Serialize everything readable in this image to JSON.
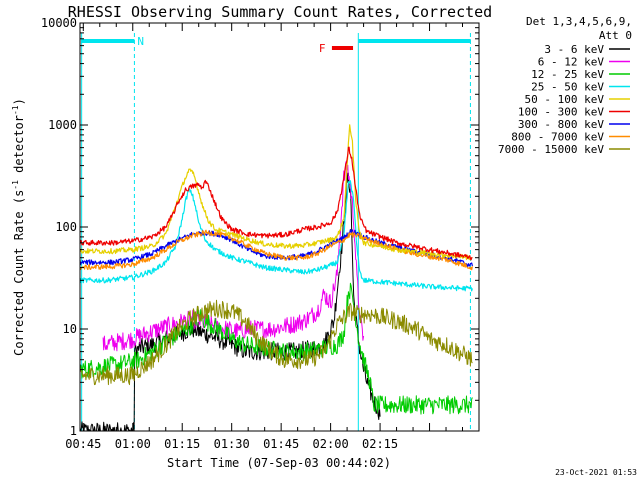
{
  "chart_data": {
    "type": "line",
    "title": "RHESSI Observing Summary Count Rates, Corrected",
    "xlabel": "Start Time (07-Sep-03 00:44:02)",
    "ylabel_main": "Corrected Count Rate (s",
    "ylabel_exp1": "-1",
    "ylabel_mid": " detector",
    "ylabel_exp2": "-1",
    "ylabel_end": ")",
    "y_scale": "log",
    "ylim": [
      1,
      10000
    ],
    "xlim_minutes": [
      44,
      165
    ],
    "x_tick_labels": [
      {
        "t": 45,
        "label": "00:45"
      },
      {
        "t": 60,
        "label": "01:00"
      },
      {
        "t": 75,
        "label": "01:15"
      },
      {
        "t": 90,
        "label": "01:30"
      },
      {
        "t": 105,
        "label": "01:45"
      },
      {
        "t": 120,
        "label": "02:00"
      },
      {
        "t": 135,
        "label": "02:15"
      }
    ],
    "y_tick_labels": [
      {
        "v": 1,
        "label": "1"
      },
      {
        "v": 10,
        "label": "10"
      },
      {
        "v": 100,
        "label": "100"
      },
      {
        "v": 1000,
        "label": "1000"
      },
      {
        "v": 10000,
        "label": "10000"
      }
    ],
    "legend_header": [
      "Det 1,3,4,5,6,9,",
      "Att 0"
    ],
    "legend_position": "right",
    "grid": false,
    "annotations": {
      "night_label": "N",
      "flare_label": "F",
      "night_intervals": [
        [
          44.3,
          60.5
        ],
        [
          128.5,
          162.5
        ]
      ],
      "flare_interval": [
        120.4,
        126.8
      ],
      "markers": [
        {
          "t": 44.5,
          "style": "solid"
        },
        {
          "t": 60.5,
          "style": "dashed"
        },
        {
          "t": 128.4,
          "style": "solid"
        },
        {
          "t": 162.4,
          "style": "dashed"
        }
      ]
    },
    "series": [
      {
        "name": "3 - 6 keV",
        "color": "#000000",
        "points": [
          [
            44,
            1
          ],
          [
            58,
            1
          ],
          [
            60.5,
            1
          ],
          [
            60.6,
            6
          ],
          [
            62,
            6.5
          ],
          [
            66,
            7
          ],
          [
            70,
            8
          ],
          [
            74,
            9
          ],
          [
            78,
            10
          ],
          [
            82,
            9
          ],
          [
            86,
            8
          ],
          [
            90,
            7
          ],
          [
            94,
            6
          ],
          [
            98,
            6
          ],
          [
            104,
            6
          ],
          [
            110,
            6
          ],
          [
            115,
            6.5
          ],
          [
            118,
            7
          ],
          [
            121,
            12
          ],
          [
            124,
            100
          ],
          [
            125,
            300
          ],
          [
            126,
            250
          ],
          [
            127,
            20
          ],
          [
            128,
            10
          ],
          [
            129,
            6
          ],
          [
            130,
            4
          ],
          [
            131,
            3
          ],
          [
            133,
            2
          ],
          [
            135,
            1.5
          ]
        ]
      },
      {
        "name": "6 - 12 keV",
        "color": "#ee00ee",
        "points": [
          [
            51,
            7
          ],
          [
            56,
            7.5
          ],
          [
            60,
            8
          ],
          [
            64,
            9
          ],
          [
            68,
            10
          ],
          [
            72,
            11
          ],
          [
            76,
            12
          ],
          [
            78,
            12.5
          ],
          [
            80,
            12
          ],
          [
            84,
            11
          ],
          [
            88,
            10
          ],
          [
            92,
            9.5
          ],
          [
            96,
            10
          ],
          [
            102,
            10
          ],
          [
            108,
            11
          ],
          [
            112,
            12
          ],
          [
            116,
            15
          ],
          [
            118,
            22
          ],
          [
            120,
            18
          ],
          [
            122,
            35
          ],
          [
            124,
            300
          ],
          [
            125,
            400
          ],
          [
            126,
            250
          ],
          [
            127,
            120
          ],
          [
            128,
            30
          ],
          [
            129,
            12
          ],
          [
            130,
            8
          ]
        ]
      },
      {
        "name": "12 - 25 keV",
        "color": "#00cc00",
        "points": [
          [
            44,
            4
          ],
          [
            56,
            4.5
          ],
          [
            62,
            5
          ],
          [
            66,
            6
          ],
          [
            70,
            7.5
          ],
          [
            74,
            9
          ],
          [
            78,
            11
          ],
          [
            80,
            14
          ],
          [
            82,
            12
          ],
          [
            86,
            10
          ],
          [
            90,
            8
          ],
          [
            94,
            7
          ],
          [
            100,
            6.5
          ],
          [
            106,
            6
          ],
          [
            112,
            6
          ],
          [
            118,
            6.5
          ],
          [
            122,
            7
          ],
          [
            124,
            9
          ],
          [
            125.5,
            25
          ],
          [
            126.5,
            22
          ],
          [
            127.5,
            14
          ],
          [
            128.5,
            8
          ],
          [
            130,
            5
          ],
          [
            132,
            3
          ],
          [
            133,
            1.8
          ],
          [
            163,
            1.8
          ]
        ]
      },
      {
        "name": "25 - 50 keV",
        "color": "#00e5ee",
        "points": [
          [
            44,
            30
          ],
          [
            52,
            30
          ],
          [
            60,
            32
          ],
          [
            66,
            37
          ],
          [
            70,
            45
          ],
          [
            73,
            65
          ],
          [
            75,
            120
          ],
          [
            76,
            180
          ],
          [
            77,
            230
          ],
          [
            78,
            210
          ],
          [
            79,
            160
          ],
          [
            80,
            110
          ],
          [
            82,
            75
          ],
          [
            85,
            60
          ],
          [
            90,
            50
          ],
          [
            95,
            45
          ],
          [
            100,
            40
          ],
          [
            106,
            38
          ],
          [
            112,
            36
          ],
          [
            116,
            38
          ],
          [
            118,
            40
          ],
          [
            120,
            42
          ],
          [
            122,
            45
          ],
          [
            124,
            80
          ],
          [
            125.3,
            260
          ],
          [
            126,
            280
          ],
          [
            127,
            180
          ],
          [
            128,
            60
          ],
          [
            129,
            35
          ],
          [
            130,
            30
          ],
          [
            140,
            28
          ],
          [
            150,
            26
          ],
          [
            160,
            25
          ],
          [
            163,
            25
          ]
        ]
      },
      {
        "name": "50 - 100 keV",
        "color": "#e6d000",
        "points": [
          [
            44,
            58
          ],
          [
            54,
            58
          ],
          [
            60,
            60
          ],
          [
            66,
            65
          ],
          [
            70,
            85
          ],
          [
            72,
            130
          ],
          [
            74,
            200
          ],
          [
            75.5,
            280
          ],
          [
            77,
            360
          ],
          [
            78.5,
            330
          ],
          [
            80,
            220
          ],
          [
            81.5,
            150
          ],
          [
            83,
            115
          ],
          [
            85,
            95
          ],
          [
            90,
            85
          ],
          [
            95,
            75
          ],
          [
            100,
            68
          ],
          [
            106,
            65
          ],
          [
            112,
            66
          ],
          [
            116,
            70
          ],
          [
            120,
            75
          ],
          [
            122,
            80
          ],
          [
            124,
            120
          ],
          [
            125,
            400
          ],
          [
            125.8,
            1000
          ],
          [
            126.6,
            700
          ],
          [
            127.5,
            200
          ],
          [
            128.5,
            100
          ],
          [
            130,
            70
          ],
          [
            140,
            60
          ],
          [
            150,
            55
          ],
          [
            163,
            50
          ]
        ]
      },
      {
        "name": "100 - 300 keV",
        "color": "#ee0000",
        "points": [
          [
            44,
            70
          ],
          [
            54,
            70
          ],
          [
            60,
            73
          ],
          [
            66,
            80
          ],
          [
            70,
            100
          ],
          [
            72,
            130
          ],
          [
            74,
            180
          ],
          [
            76,
            230
          ],
          [
            78,
            250
          ],
          [
            80,
            260
          ],
          [
            81,
            240
          ],
          [
            82,
            280
          ],
          [
            83,
            250
          ],
          [
            85,
            170
          ],
          [
            87,
            120
          ],
          [
            90,
            95
          ],
          [
            95,
            85
          ],
          [
            100,
            82
          ],
          [
            106,
            84
          ],
          [
            112,
            95
          ],
          [
            116,
            100
          ],
          [
            120,
            110
          ],
          [
            122,
            140
          ],
          [
            124,
            300
          ],
          [
            125.5,
            600
          ],
          [
            126.5,
            450
          ],
          [
            127.5,
            250
          ],
          [
            129,
            120
          ],
          [
            131,
            90
          ],
          [
            140,
            70
          ],
          [
            150,
            60
          ],
          [
            163,
            50
          ]
        ]
      },
      {
        "name": "300 - 800 keV",
        "color": "#0000ee",
        "points": [
          [
            44,
            45
          ],
          [
            54,
            45
          ],
          [
            60,
            48
          ],
          [
            66,
            55
          ],
          [
            70,
            65
          ],
          [
            74,
            75
          ],
          [
            78,
            85
          ],
          [
            82,
            88
          ],
          [
            86,
            85
          ],
          [
            90,
            75
          ],
          [
            95,
            60
          ],
          [
            100,
            52
          ],
          [
            106,
            50
          ],
          [
            112,
            52
          ],
          [
            116,
            58
          ],
          [
            120,
            68
          ],
          [
            124,
            78
          ],
          [
            126,
            90
          ],
          [
            128,
            88
          ],
          [
            130,
            80
          ],
          [
            135,
            70
          ],
          [
            145,
            58
          ],
          [
            155,
            50
          ],
          [
            163,
            42
          ]
        ]
      },
      {
        "name": "800 - 7000 keV",
        "color": "#ff8c00",
        "points": [
          [
            44,
            40
          ],
          [
            54,
            41
          ],
          [
            60,
            43
          ],
          [
            66,
            50
          ],
          [
            70,
            60
          ],
          [
            74,
            72
          ],
          [
            78,
            82
          ],
          [
            82,
            88
          ],
          [
            86,
            86
          ],
          [
            90,
            78
          ],
          [
            95,
            65
          ],
          [
            100,
            55
          ],
          [
            106,
            50
          ],
          [
            112,
            50
          ],
          [
            116,
            55
          ],
          [
            120,
            65
          ],
          [
            124,
            75
          ],
          [
            126,
            85
          ],
          [
            128,
            82
          ],
          [
            130,
            78
          ],
          [
            135,
            68
          ],
          [
            145,
            55
          ],
          [
            155,
            48
          ],
          [
            163,
            40
          ]
        ]
      },
      {
        "name": "7000 - 15000 keV",
        "color": "#8b8b00",
        "points": [
          [
            44,
            3.5
          ],
          [
            60,
            3.5
          ],
          [
            62,
            4
          ],
          [
            66,
            5
          ],
          [
            70,
            7
          ],
          [
            74,
            10
          ],
          [
            78,
            13
          ],
          [
            82,
            15
          ],
          [
            86,
            16
          ],
          [
            90,
            15
          ],
          [
            94,
            12
          ],
          [
            98,
            8
          ],
          [
            102,
            6
          ],
          [
            106,
            5
          ],
          [
            110,
            5
          ],
          [
            114,
            5
          ],
          [
            118,
            6
          ],
          [
            120,
            8
          ],
          [
            122,
            11
          ],
          [
            124,
            13
          ],
          [
            126,
            15
          ],
          [
            128,
            14
          ],
          [
            132,
            14
          ],
          [
            136,
            13
          ],
          [
            140,
            12
          ],
          [
            146,
            10
          ],
          [
            150,
            8
          ],
          [
            155,
            7
          ],
          [
            163,
            5
          ]
        ]
      }
    ],
    "timestamp": "23-Oct-2021 01:53"
  }
}
